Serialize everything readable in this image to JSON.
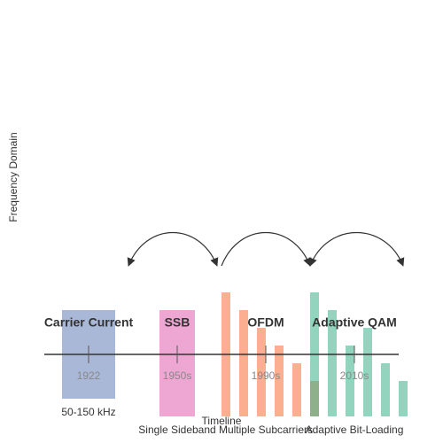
{
  "axis_label": "Frequency Domain",
  "timeline_label": "Timeline",
  "eras": [
    {
      "title": "Carrier Current",
      "year": "1922",
      "note": "50-150 kHz"
    },
    {
      "title": "SSB",
      "year": "1950s",
      "note": "Single Sideband"
    },
    {
      "title": "OFDM",
      "year": "1990s",
      "note": "Multiple Subcarriers"
    },
    {
      "title": "Adaptive QAM",
      "year": "2010s",
      "note": "Adaptive Bit-Loading"
    }
  ]
}
